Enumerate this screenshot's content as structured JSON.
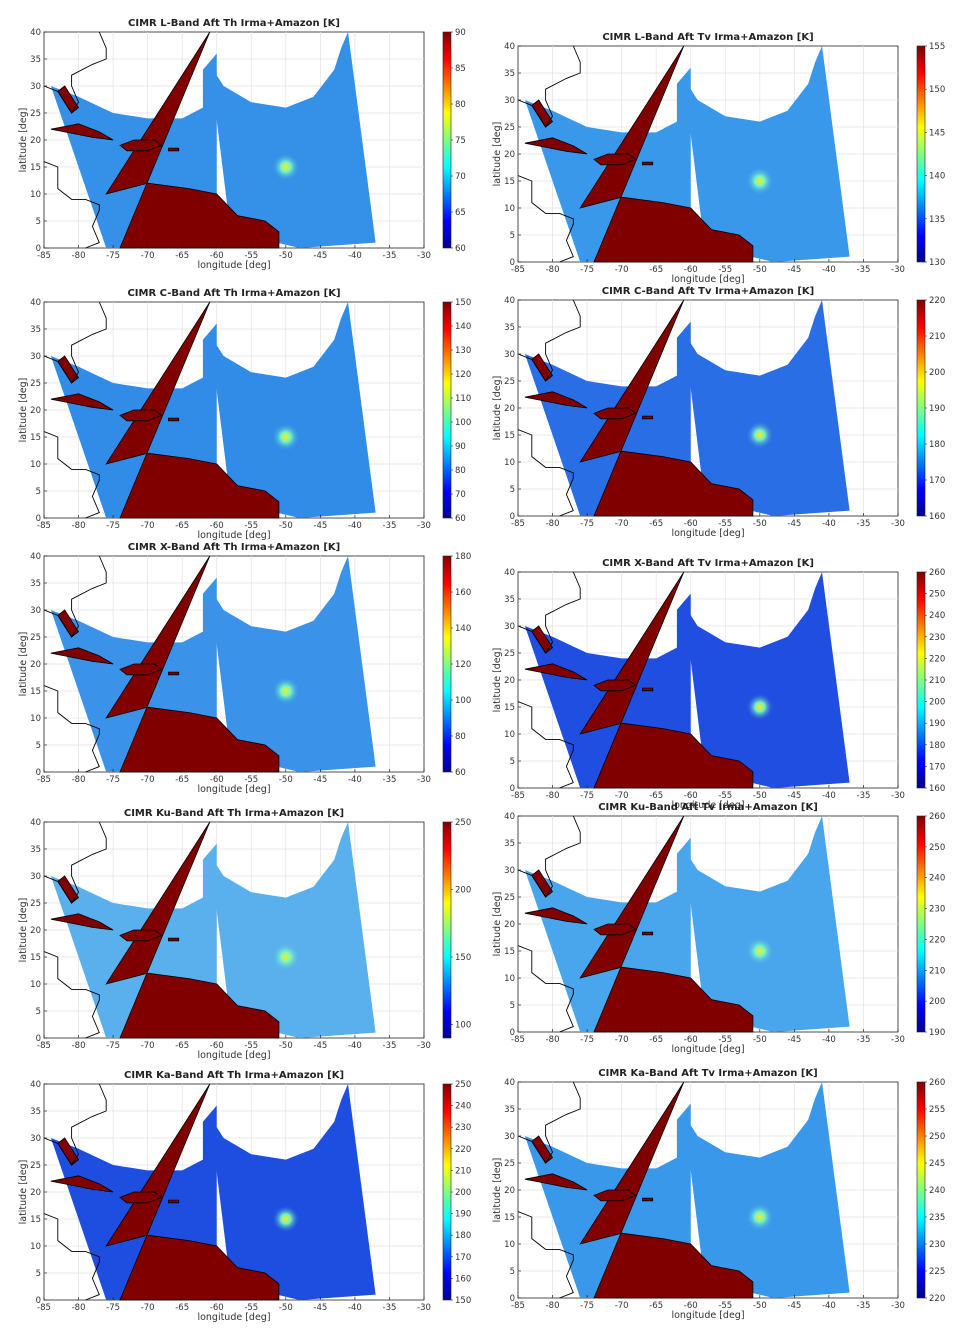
{
  "figure": {
    "xlabel": "longitude [deg]",
    "ylabel": "latitude [deg]",
    "xticks": [
      "-85",
      "-80",
      "-75",
      "-70",
      "-65",
      "-60",
      "-55",
      "-50",
      "-45",
      "-40",
      "-35",
      "-30"
    ],
    "yticks": [
      "0",
      "5",
      "10",
      "15",
      "20",
      "25",
      "30",
      "35",
      "40"
    ],
    "colors": {
      "land": "#800000",
      "ocean_default": "#2f8ae6",
      "coast": "#000000"
    }
  },
  "chart_data": [
    {
      "type": "heatmap",
      "title": "CIMR L-Band Aft Th Irma+Amazon [K]",
      "xlabel": "longitude [deg]",
      "ylabel": "latitude [deg]",
      "xlim": [
        -85,
        -30
      ],
      "ylim": [
        0,
        40
      ],
      "colorbar": {
        "ticks": [
          "60",
          "65",
          "70",
          "75",
          "80",
          "85",
          "90"
        ],
        "range": [
          60,
          90
        ]
      },
      "storm_center": [
        -50,
        15
      ],
      "grid": true
    },
    {
      "type": "heatmap",
      "title": "CIMR L-Band Aft Tv Irma+Amazon [K]",
      "xlabel": "longitude [deg]",
      "ylabel": "latitude [deg]",
      "xlim": [
        -85,
        -30
      ],
      "ylim": [
        0,
        40
      ],
      "colorbar": {
        "ticks": [
          "130",
          "135",
          "140",
          "145",
          "150",
          "155"
        ],
        "range": [
          130,
          155
        ]
      },
      "storm_center": [
        -50,
        15
      ],
      "grid": true
    },
    {
      "type": "heatmap",
      "title": "CIMR C-Band Aft Th Irma+Amazon [K]",
      "xlabel": "longitude [deg]",
      "ylabel": "latitude [deg]",
      "xlim": [
        -85,
        -30
      ],
      "ylim": [
        0,
        40
      ],
      "colorbar": {
        "ticks": [
          "60",
          "70",
          "80",
          "90",
          "100",
          "110",
          "120",
          "130",
          "140",
          "150"
        ],
        "range": [
          60,
          150
        ]
      },
      "storm_center": [
        -50,
        15
      ],
      "grid": true
    },
    {
      "type": "heatmap",
      "title": "CIMR C-Band Aft Tv Irma+Amazon [K]",
      "xlabel": "longitude [deg]",
      "ylabel": "latitude [deg]",
      "xlim": [
        -85,
        -30
      ],
      "ylim": [
        0,
        40
      ],
      "colorbar": {
        "ticks": [
          "160",
          "170",
          "180",
          "190",
          "200",
          "210",
          "220"
        ],
        "range": [
          160,
          220
        ]
      },
      "storm_center": [
        -50,
        15
      ],
      "grid": true
    },
    {
      "type": "heatmap",
      "title": "CIMR X-Band Aft Th Irma+Amazon [K]",
      "xlabel": "longitude [deg]",
      "ylabel": "latitude [deg]",
      "xlim": [
        -85,
        -30
      ],
      "ylim": [
        0,
        40
      ],
      "colorbar": {
        "ticks": [
          "60",
          "80",
          "100",
          "120",
          "140",
          "160",
          "180"
        ],
        "range": [
          60,
          180
        ]
      },
      "storm_center": [
        -50,
        15
      ],
      "grid": true
    },
    {
      "type": "heatmap",
      "title": "CIMR X-Band Aft Tv Irma+Amazon [K]",
      "xlabel": "longitude [deg]",
      "ylabel": "latitude [deg]",
      "xlim": [
        -85,
        -30
      ],
      "ylim": [
        0,
        40
      ],
      "colorbar": {
        "ticks": [
          "160",
          "170",
          "180",
          "190",
          "200",
          "210",
          "220",
          "230",
          "240",
          "250",
          "260"
        ],
        "range": [
          160,
          260
        ]
      },
      "storm_center": [
        -50,
        15
      ],
      "grid": true
    },
    {
      "type": "heatmap",
      "title": "CIMR Ku-Band Aft Th Irma+Amazon [K]",
      "xlabel": "longitude [deg]",
      "ylabel": "latitude [deg]",
      "xlim": [
        -85,
        -30
      ],
      "ylim": [
        0,
        40
      ],
      "colorbar": {
        "ticks": [
          "100",
          "150",
          "200",
          "250"
        ],
        "range": [
          90,
          250
        ]
      },
      "storm_center": [
        -50,
        15
      ],
      "grid": true
    },
    {
      "type": "heatmap",
      "title": "CIMR Ku-Band Aft Tv Irma+Amazon [K]",
      "xlabel": "longitude [deg]",
      "ylabel": "latitude [deg]",
      "xlim": [
        -85,
        -30
      ],
      "ylim": [
        0,
        40
      ],
      "colorbar": {
        "ticks": [
          "190",
          "200",
          "210",
          "220",
          "230",
          "240",
          "250",
          "260"
        ],
        "range": [
          190,
          260
        ]
      },
      "storm_center": [
        -50,
        15
      ],
      "grid": true
    },
    {
      "type": "heatmap",
      "title": "CIMR Ka-Band Aft Th Irma+Amazon [K]",
      "xlabel": "longitude [deg]",
      "ylabel": "latitude [deg]",
      "xlim": [
        -85,
        -30
      ],
      "ylim": [
        0,
        40
      ],
      "colorbar": {
        "ticks": [
          "150",
          "160",
          "170",
          "180",
          "190",
          "200",
          "210",
          "220",
          "230",
          "240",
          "250"
        ],
        "range": [
          150,
          250
        ]
      },
      "storm_center": [
        -50,
        15
      ],
      "grid": true
    },
    {
      "type": "heatmap",
      "title": "CIMR Ka-Band Aft Tv Irma+Amazon [K]",
      "xlabel": "longitude [deg]",
      "ylabel": "latitude [deg]",
      "xlim": [
        -85,
        -30
      ],
      "ylim": [
        0,
        40
      ],
      "colorbar": {
        "ticks": [
          "220",
          "225",
          "230",
          "235",
          "240",
          "245",
          "250",
          "255",
          "260"
        ],
        "range": [
          220,
          260
        ]
      },
      "storm_center": [
        -50,
        15
      ],
      "grid": true
    }
  ]
}
